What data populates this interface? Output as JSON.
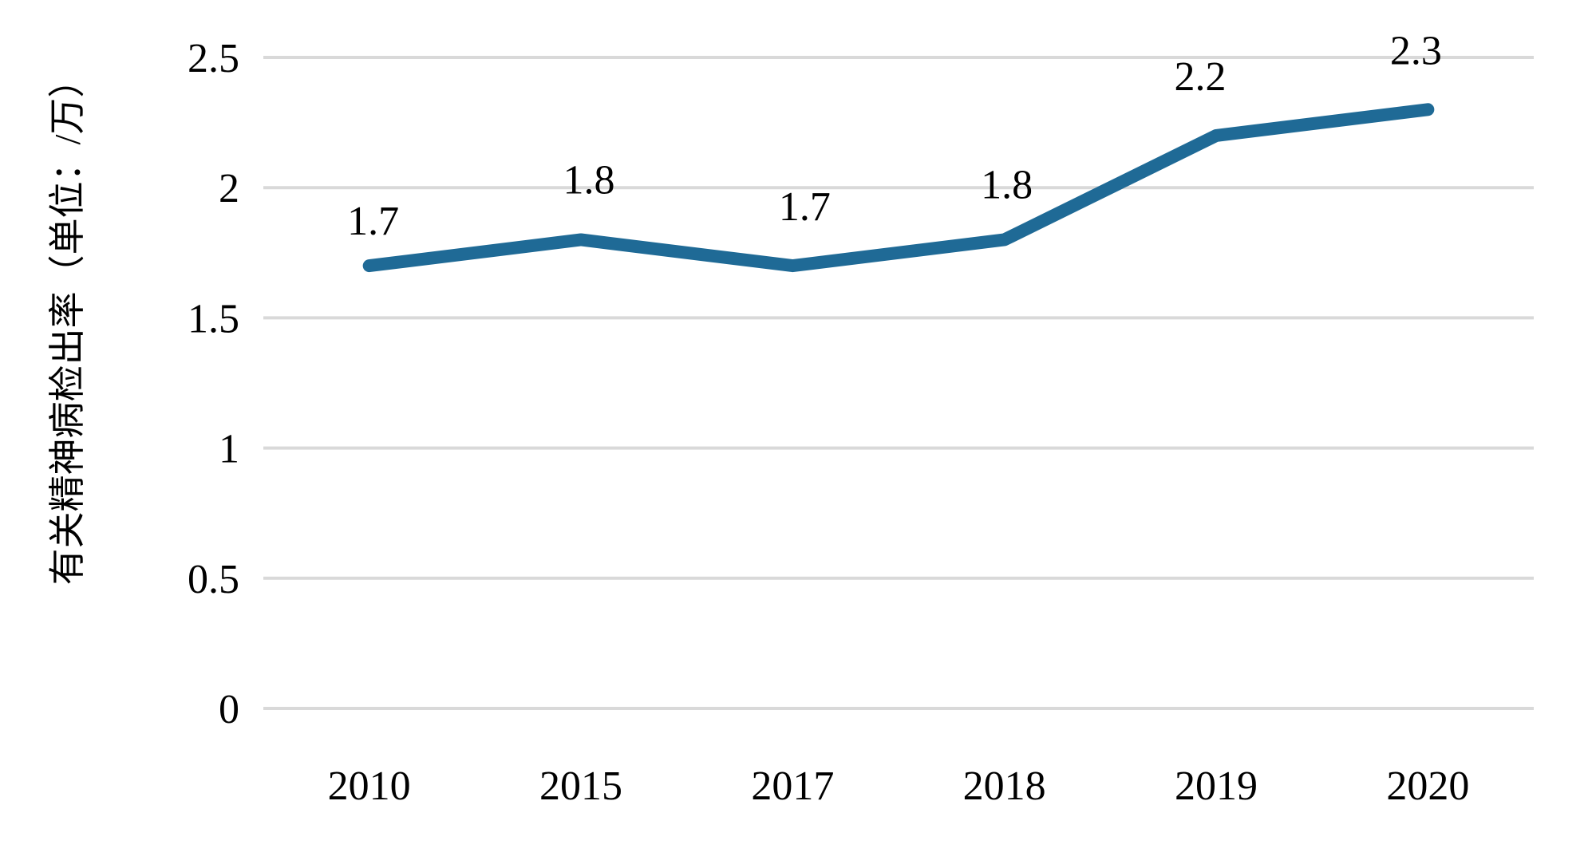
{
  "chart_data": {
    "type": "line",
    "title": "",
    "categories": [
      "2010",
      "2015",
      "2017",
      "2018",
      "2019",
      "2020"
    ],
    "series": [
      {
        "name": "有关精神病检出率",
        "values": [
          1.7,
          1.8,
          1.7,
          1.8,
          2.2,
          2.3
        ]
      }
    ],
    "data_labels": [
      "1.7",
      "1.8",
      "1.7",
      "1.8",
      "2.2",
      "2.3"
    ],
    "xlabel": "",
    "ylabel": "有关精神病检出率（单位：/万）",
    "y_ticks": [
      "2.5",
      "2",
      "1.5",
      "1",
      "0.5",
      "0"
    ],
    "y_tick_values": [
      2.5,
      2,
      1.5,
      1,
      0.5,
      0
    ],
    "ylim": [
      0,
      2.5
    ],
    "grid": "horizontal-only",
    "legend": "none",
    "colors": {
      "line": "#1F6A96",
      "gridline": "#D9D9D9",
      "text": "#000000",
      "background": "#FFFFFF"
    }
  }
}
